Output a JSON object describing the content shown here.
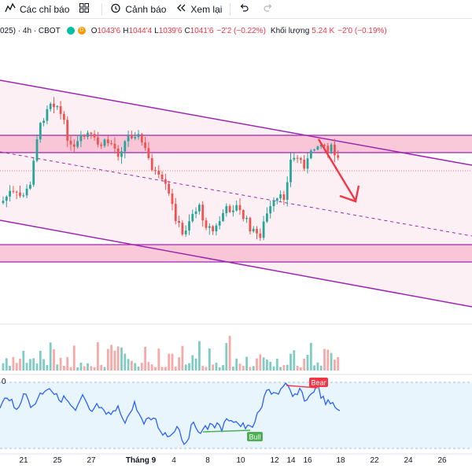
{
  "toolbar": {
    "indicators_label": "Các chỉ báo",
    "alerts_label": "Cảnh báo",
    "replay_label": "Xem lại"
  },
  "legend": {
    "symbol": "025) · 4h · CBOT",
    "badge_d": "D",
    "open_label": "O",
    "open": "1043'6",
    "high_label": "H",
    "high": "1044'4",
    "low_label": "L",
    "low": "1039'6",
    "close_label": "C",
    "close": "1041'6",
    "change": "−2'2 (−0.22%)",
    "volume_label": "Khối lượng",
    "volume": "5.24 K",
    "volume_change": "−2'0 (−0.19%)"
  },
  "oscillator": {
    "zero_label": "0",
    "bear_label": "Bear",
    "bull_label": "Bull"
  },
  "x_axis": {
    "labels": [
      "21",
      "25",
      "27",
      "Tháng 9",
      "4",
      "8",
      "10",
      "12",
      "14",
      "16",
      "18",
      "22",
      "24",
      "26"
    ]
  },
  "colors": {
    "up": "#26a69a",
    "down": "#ef5350",
    "channel": "#9c27b0",
    "zone_fill": "#f8bbd0",
    "osc_line": "#2962ff",
    "arrow": "#f23645",
    "bull": "#4caf50",
    "bear": "#f23645"
  },
  "icons": {
    "indicators": "function-icon",
    "layout": "grid-icon",
    "alerts": "alarm-clock-icon",
    "replay": "rewind-icon",
    "undo": "undo-icon",
    "redo": "redo-icon"
  }
}
